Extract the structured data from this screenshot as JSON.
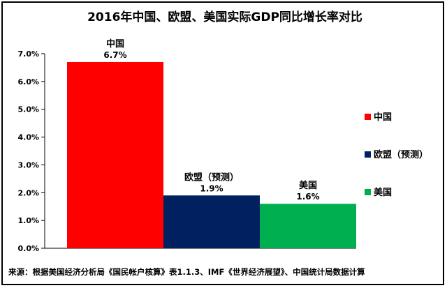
{
  "chart_data": {
    "type": "bar",
    "title": "2016年中国、欧盟、美国实际GDP同比增长率对比",
    "categories": [
      "中国",
      "欧盟（预测）",
      "美国"
    ],
    "values": [
      6.7,
      1.9,
      1.6
    ],
    "value_labels": [
      "6.7%",
      "1.9%",
      "1.6%"
    ],
    "colors": [
      "#ff0000",
      "#002060",
      "#00b050"
    ],
    "ylim": [
      0,
      7
    ],
    "yticks": [
      "0.0%",
      "1.0%",
      "2.0%",
      "3.0%",
      "4.0%",
      "5.0%",
      "6.0%",
      "7.0%"
    ],
    "xlabel": "",
    "ylabel": "",
    "grid": false,
    "legend": {
      "position": "right",
      "entries": [
        "中国",
        "欧盟（预测）",
        "美国"
      ]
    },
    "source": "来源：根据美国经济分析局《国民帐户核算》表1.1.3、IMF《世界经济展望》、中国统计局数据计算"
  }
}
